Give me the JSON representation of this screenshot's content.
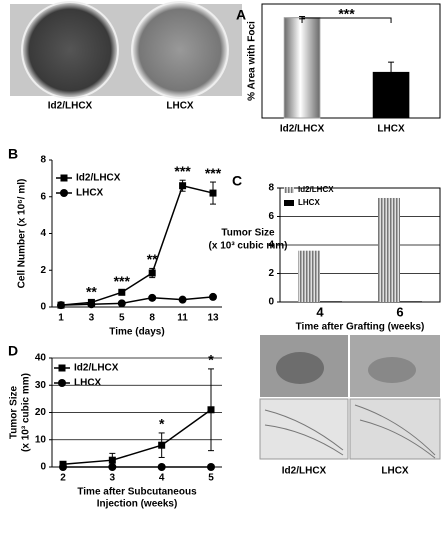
{
  "chart_data": [
    {
      "panel": "A",
      "type": "bar",
      "image_labels": [
        "Id2/LHCX",
        "LHCX"
      ],
      "ylabel": "% Area with Foci",
      "categories": [
        "Id2/LHCX",
        "LHCX"
      ],
      "values": [
        88,
        40
      ],
      "errors": [
        1,
        9
      ],
      "colors": [
        "#9a9a9a",
        "#000000"
      ],
      "ylim": [
        0,
        100
      ],
      "annotations": [
        {
          "text": "***",
          "between": [
            "Id2/LHCX",
            "LHCX"
          ]
        }
      ]
    },
    {
      "panel": "B",
      "type": "line",
      "ylabel": "Cell Number (x 10⁶/ ml)",
      "xlabel": "Time (days)",
      "categories": [
        "1",
        "3",
        "5",
        "8",
        "11",
        "13"
      ],
      "series": [
        {
          "name": "Id2/LHCX",
          "color": "#000000",
          "marker": "square",
          "values": [
            0.1,
            0.25,
            0.8,
            1.85,
            6.6,
            6.2
          ],
          "errors": [
            0.05,
            0.1,
            0.1,
            0.25,
            0.3,
            0.6
          ]
        },
        {
          "name": "LHCX",
          "color": "#000000",
          "marker": "circle",
          "values": [
            0.1,
            0.15,
            0.2,
            0.5,
            0.4,
            0.55
          ],
          "errors": [
            0.02,
            0.05,
            0.05,
            0.1,
            0.05,
            0.05
          ]
        }
      ],
      "ylim": [
        0,
        8
      ],
      "yticks": [
        0,
        2,
        4,
        6,
        8
      ],
      "grid": false,
      "legend": "top-left",
      "annotations": [
        {
          "x": "3",
          "text": "**"
        },
        {
          "x": "5",
          "text": "***"
        },
        {
          "x": "8",
          "text": "**"
        },
        {
          "x": "11",
          "text": "***"
        },
        {
          "x": "13",
          "text": "***"
        }
      ]
    },
    {
      "panel": "C",
      "type": "grouped-bar",
      "ylabel": [
        "Tumor Size",
        "(x 10³ cubic mm)"
      ],
      "xlabel": "Time after Grafting (weeks)",
      "categories": [
        "4",
        "6"
      ],
      "image_labels": [
        "Id2/LHCX",
        "LHCX"
      ],
      "series": [
        {
          "name": "Id2/LHCX",
          "color": "#8a8a8a",
          "values": [
            3.6,
            7.3
          ]
        },
        {
          "name": "LHCX",
          "color": "#000000",
          "values": [
            0.05,
            0.05
          ]
        }
      ],
      "ylim": [
        0,
        8
      ],
      "yticks": [
        0,
        2,
        4,
        6,
        8
      ],
      "grid": true,
      "legend": "top-left"
    },
    {
      "panel": "D",
      "type": "line",
      "ylabel": [
        "Tumor Size",
        "(x 10³ cubic mm)"
      ],
      "xlabel": [
        "Time after Subcutaneous",
        "Injection (weeks)"
      ],
      "categories": [
        "2",
        "3",
        "4",
        "5"
      ],
      "series": [
        {
          "name": "Id2/LHCX",
          "color": "#000000",
          "marker": "square",
          "values": [
            1,
            2.5,
            8,
            21
          ],
          "errors": [
            0.5,
            2.5,
            4.5,
            15
          ]
        },
        {
          "name": "LHCX",
          "color": "#000000",
          "marker": "circle",
          "values": [
            0,
            0,
            0,
            0
          ],
          "errors": [
            0,
            0,
            0,
            0
          ]
        }
      ],
      "ylim": [
        0,
        40
      ],
      "yticks": [
        0,
        10,
        20,
        30,
        40
      ],
      "grid": true,
      "legend": "top-left",
      "annotations": [
        {
          "x": "4",
          "text": "*"
        },
        {
          "x": "5",
          "text": "*"
        }
      ]
    }
  ]
}
